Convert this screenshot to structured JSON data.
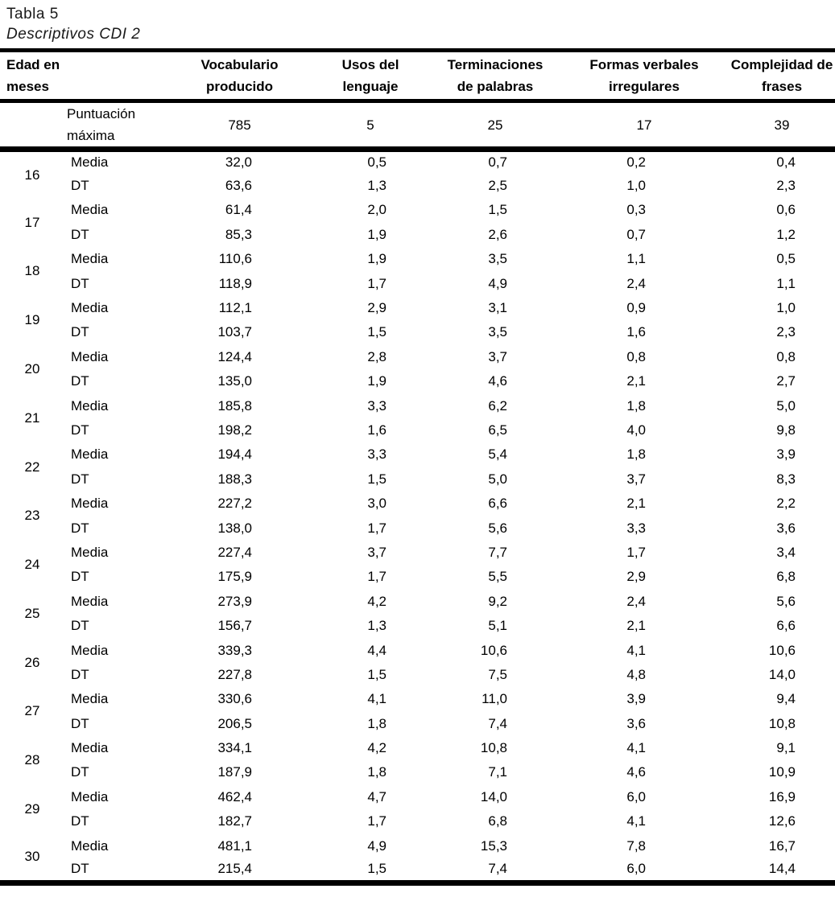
{
  "title": "Tabla 5",
  "subtitle": "Descriptivos CDI 2",
  "table": {
    "corner_header_lines": [
      "Edad en",
      "meses"
    ],
    "column_headers": [
      [
        "Vocabulario",
        "producido"
      ],
      [
        "Usos del",
        "lenguaje"
      ],
      [
        "Terminaciones",
        "de palabras"
      ],
      [
        "Formas verbales",
        "irregulares"
      ],
      [
        "Complejidad de",
        "frases"
      ]
    ],
    "max_row": {
      "label_lines": [
        "Puntuación",
        "máxima"
      ],
      "values": [
        "785",
        "5",
        "25",
        "17",
        "39"
      ]
    },
    "row_labels": {
      "media": "Media",
      "dt": "DT"
    },
    "age_groups": [
      {
        "age": "16",
        "media": [
          "32,0",
          "0,5",
          "0,7",
          "0,2",
          "0,4"
        ],
        "dt": [
          "63,6",
          "1,3",
          "2,5",
          "1,0",
          "2,3"
        ]
      },
      {
        "age": "17",
        "media": [
          "61,4",
          "2,0",
          "1,5",
          "0,3",
          "0,6"
        ],
        "dt": [
          "85,3",
          "1,9",
          "2,6",
          "0,7",
          "1,2"
        ]
      },
      {
        "age": "18",
        "media": [
          "110,6",
          "1,9",
          "3,5",
          "1,1",
          "0,5"
        ],
        "dt": [
          "118,9",
          "1,7",
          "4,9",
          "2,4",
          "1,1"
        ]
      },
      {
        "age": "19",
        "media": [
          "112,1",
          "2,9",
          "3,1",
          "0,9",
          "1,0"
        ],
        "dt": [
          "103,7",
          "1,5",
          "3,5",
          "1,6",
          "2,3"
        ]
      },
      {
        "age": "20",
        "media": [
          "124,4",
          "2,8",
          "3,7",
          "0,8",
          "0,8"
        ],
        "dt": [
          "135,0",
          "1,9",
          "4,6",
          "2,1",
          "2,7"
        ]
      },
      {
        "age": "21",
        "media": [
          "185,8",
          "3,3",
          "6,2",
          "1,8",
          "5,0"
        ],
        "dt": [
          "198,2",
          "1,6",
          "6,5",
          "4,0",
          "9,8"
        ]
      },
      {
        "age": "22",
        "media": [
          "194,4",
          "3,3",
          "5,4",
          "1,8",
          "3,9"
        ],
        "dt": [
          "188,3",
          "1,5",
          "5,0",
          "3,7",
          "8,3"
        ]
      },
      {
        "age": "23",
        "media": [
          "227,2",
          "3,0",
          "6,6",
          "2,1",
          "2,2"
        ],
        "dt": [
          "138,0",
          "1,7",
          "5,6",
          "3,3",
          "3,6"
        ]
      },
      {
        "age": "24",
        "media": [
          "227,4",
          "3,7",
          "7,7",
          "1,7",
          "3,4"
        ],
        "dt": [
          "175,9",
          "1,7",
          "5,5",
          "2,9",
          "6,8"
        ]
      },
      {
        "age": "25",
        "media": [
          "273,9",
          "4,2",
          "9,2",
          "2,4",
          "5,6"
        ],
        "dt": [
          "156,7",
          "1,3",
          "5,1",
          "2,1",
          "6,6"
        ]
      },
      {
        "age": "26",
        "media": [
          "339,3",
          "4,4",
          "10,6",
          "4,1",
          "10,6"
        ],
        "dt": [
          "227,8",
          "1,5",
          "7,5",
          "4,8",
          "14,0"
        ]
      },
      {
        "age": "27",
        "media": [
          "330,6",
          "4,1",
          "11,0",
          "3,9",
          "9,4"
        ],
        "dt": [
          "206,5",
          "1,8",
          "7,4",
          "3,6",
          "10,8"
        ]
      },
      {
        "age": "28",
        "media": [
          "334,1",
          "4,2",
          "10,8",
          "4,1",
          "9,1"
        ],
        "dt": [
          "187,9",
          "1,8",
          "7,1",
          "4,6",
          "10,9"
        ]
      },
      {
        "age": "29",
        "media": [
          "462,4",
          "4,7",
          "14,0",
          "6,0",
          "16,9"
        ],
        "dt": [
          "182,7",
          "1,7",
          "6,8",
          "4,1",
          "12,6"
        ]
      },
      {
        "age": "30",
        "media": [
          "481,1",
          "4,9",
          "15,3",
          "7,8",
          "16,7"
        ],
        "dt": [
          "215,4",
          "1,5",
          "7,4",
          "6,0",
          "14,4"
        ]
      }
    ]
  }
}
